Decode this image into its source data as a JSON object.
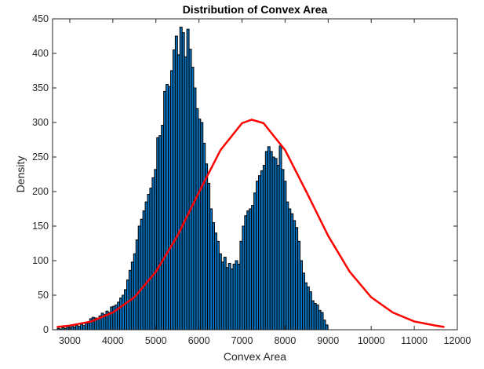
{
  "chart_data": {
    "type": "bar",
    "title": "Distribution of Convex Area",
    "xlabel": "Convex Area",
    "ylabel": "Density",
    "xlim": [
      2600,
      12000
    ],
    "ylim": [
      0,
      450
    ],
    "xticks": [
      3000,
      4000,
      5000,
      6000,
      7000,
      8000,
      9000,
      10000,
      11000,
      12000
    ],
    "yticks": [
      0,
      50,
      100,
      150,
      200,
      250,
      300,
      350,
      400,
      450
    ],
    "grid": false,
    "histogram": {
      "bin_start": 2710,
      "bin_width": 53.7,
      "counts": [
        2,
        1,
        3,
        2,
        5,
        3,
        6,
        4,
        6,
        5,
        8,
        6,
        10,
        9,
        16,
        18,
        17,
        16,
        20,
        24,
        22,
        27,
        25,
        33,
        34,
        36,
        40,
        46,
        50,
        58,
        72,
        86,
        98,
        110,
        130,
        150,
        160,
        172,
        185,
        196,
        205,
        220,
        232,
        278,
        281,
        296,
        345,
        355,
        352,
        375,
        405,
        425,
        398,
        438,
        430,
        395,
        435,
        406,
        380,
        350,
        320,
        305,
        300,
        270,
        240,
        212,
        175,
        155,
        140,
        128,
        110,
        98,
        105,
        90,
        96,
        88,
        95,
        100,
        95,
        128,
        150,
        165,
        172,
        175,
        180,
        198,
        215,
        223,
        230,
        238,
        258,
        265,
        258,
        250,
        248,
        238,
        266,
        232,
        215,
        185,
        175,
        168,
        158,
        148,
        128,
        100,
        82,
        68,
        62,
        55,
        42,
        38,
        36,
        28,
        25,
        14,
        7
      ],
      "color": "#0b72bd"
    },
    "series": [
      {
        "type": "line",
        "color": "#ff0000",
        "x": [
          2700,
          3000,
          3500,
          4000,
          4500,
          5000,
          5500,
          6000,
          6500,
          7000,
          7225,
          7500,
          8000,
          8500,
          9000,
          9500,
          10000,
          10500,
          11000,
          11500,
          11700
        ],
        "y": [
          4,
          6,
          12,
          25,
          47,
          84,
          136,
          199,
          260,
          299,
          304,
          299,
          260,
          199,
          136,
          84,
          47,
          25,
          12,
          6,
          4
        ]
      }
    ]
  }
}
